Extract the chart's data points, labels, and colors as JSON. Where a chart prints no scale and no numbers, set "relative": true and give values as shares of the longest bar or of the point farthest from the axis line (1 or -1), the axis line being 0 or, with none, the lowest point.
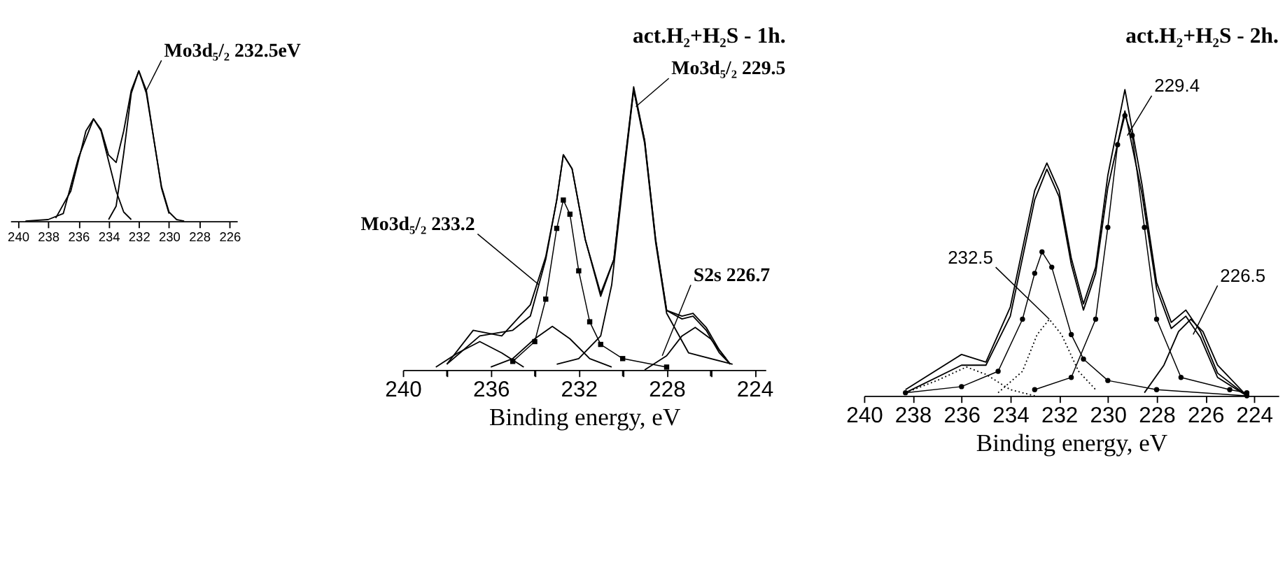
{
  "chart_data": [
    {
      "type": "line",
      "relative": true,
      "xlim": [
        240.5,
        225.5
      ],
      "xticks": [
        240,
        238,
        236,
        234,
        232,
        230,
        228,
        226
      ],
      "series": [
        {
          "color": "#000000",
          "x": [
            239.5,
            238,
            237,
            236,
            235,
            234.5,
            234,
            233.5,
            233,
            232.5,
            232,
            231.5,
            231,
            230.5,
            230,
            229.5,
            229
          ],
          "values": [
            0.0,
            0.01,
            0.05,
            0.42,
            0.68,
            0.61,
            0.44,
            0.39,
            0.6,
            0.87,
            1.0,
            0.87,
            0.54,
            0.23,
            0.06,
            0.01,
            0.0
          ]
        },
        {
          "color": "#000000",
          "x": [
            237.5,
            236.5,
            236,
            235.5,
            235,
            234.5,
            234,
            233.5,
            233,
            232.5
          ],
          "values": [
            0.02,
            0.2,
            0.4,
            0.6,
            0.68,
            0.6,
            0.4,
            0.2,
            0.06,
            0.01
          ]
        },
        {
          "color": "#000000",
          "x": [
            234,
            233.5,
            233,
            232.5,
            232,
            231.5,
            231,
            230.5,
            230
          ],
          "values": [
            0.01,
            0.1,
            0.45,
            0.85,
            1.0,
            0.85,
            0.54,
            0.22,
            0.05
          ]
        }
      ],
      "annotations": [
        {
          "text": "Mo3d₅/₂ 232.5eV",
          "x": 231.5,
          "y": 0.87
        }
      ]
    },
    {
      "type": "line",
      "relative": true,
      "title": "act.H₂+H₂S - 1h.",
      "xlabel": "Binding energy, eV",
      "xlim": [
        240,
        223.5
      ],
      "xticks": [
        240,
        {
          "value": 238,
          "label": null
        },
        236,
        {
          "value": 234,
          "label": null
        },
        232,
        {
          "value": 230,
          "label": null
        },
        228,
        {
          "value": 226,
          "label": null
        },
        224
      ],
      "series": [
        {
          "color": "#000000",
          "x": [
            238,
            236.5,
            235,
            234.2,
            233.5,
            233,
            232.7,
            232.3,
            231.7,
            231,
            230.4,
            230,
            229.5,
            229,
            228.5,
            228,
            227.3,
            226.8,
            226.2,
            225.6,
            225.1
          ],
          "values": [
            0.02,
            0.12,
            0.14,
            0.19,
            0.39,
            0.6,
            0.76,
            0.71,
            0.46,
            0.26,
            0.39,
            0.67,
            1.0,
            0.81,
            0.46,
            0.21,
            0.18,
            0.19,
            0.14,
            0.06,
            0.02
          ]
        },
        {
          "color": "#000000",
          "x": [
            238,
            236.8,
            235.5,
            234.2,
            233.5,
            233,
            232.7,
            232.3,
            231.7,
            231,
            230.4,
            230,
            229.5,
            229,
            228.5,
            228,
            227.3,
            226.8,
            226.2,
            225.6,
            225.1
          ],
          "values": [
            0.02,
            0.14,
            0.12,
            0.23,
            0.4,
            0.6,
            0.76,
            0.71,
            0.46,
            0.27,
            0.39,
            0.67,
            0.99,
            0.81,
            0.46,
            0.21,
            0.19,
            0.2,
            0.15,
            0.07,
            0.02
          ]
        },
        {
          "color": "#000000",
          "marker": "square",
          "x": [
            235,
            234,
            233.5,
            233,
            232.7,
            232.4,
            232,
            231.5,
            231,
            230,
            228
          ],
          "values": [
            0.03,
            0.1,
            0.25,
            0.5,
            0.6,
            0.55,
            0.35,
            0.17,
            0.09,
            0.04,
            0.01
          ]
        },
        {
          "color": "#000000",
          "x": [
            233,
            232,
            231,
            230.5,
            230,
            229.5,
            229,
            228.5,
            228,
            227,
            225
          ],
          "values": [
            0.02,
            0.04,
            0.12,
            0.3,
            0.65,
            0.99,
            0.8,
            0.45,
            0.2,
            0.06,
            0.02
          ]
        },
        {
          "color": "#000000",
          "x": [
            236,
            235,
            234,
            233.2,
            232.4,
            231.5,
            230.5
          ],
          "values": [
            0.01,
            0.04,
            0.11,
            0.154,
            0.11,
            0.04,
            0.01
          ]
        },
        {
          "color": "#000000",
          "x": [
            238.5,
            237.5,
            236.5,
            235.5,
            234.5
          ],
          "values": [
            0.01,
            0.06,
            0.1,
            0.06,
            0.01
          ]
        },
        {
          "color": "#000000",
          "x": [
            229,
            228,
            227.3,
            226.7,
            226,
            225.3
          ],
          "values": [
            0.0,
            0.05,
            0.12,
            0.15,
            0.11,
            0.04
          ]
        }
      ],
      "annotations": [
        {
          "text": "Mo3d₅/₂ 229.5",
          "x": 229.4,
          "y": 0.93
        },
        {
          "text": "Mo3d₅/₂ 233.2",
          "x": 233.8,
          "y": 0.3
        },
        {
          "text": "S2s 226.7",
          "x": 228.2,
          "y": 0.05
        }
      ]
    },
    {
      "type": "line",
      "relative": true,
      "title": "act.H₂+H₂S - 2h.",
      "xlabel": "Binding energy, eV",
      "xlim": [
        240,
        223
      ],
      "xticks": [
        240,
        238,
        236,
        234,
        232,
        230,
        228,
        226,
        224
      ],
      "series": [
        {
          "color": "#000000",
          "x": [
            238.3,
            236,
            235,
            234,
            233,
            232.5,
            232,
            231.5,
            231,
            230.5,
            230,
            229.3,
            228.6,
            228,
            227.4,
            226.8,
            226.2,
            225.5,
            224.3
          ],
          "values": [
            0.02,
            0.135,
            0.11,
            0.29,
            0.67,
            0.76,
            0.67,
            0.45,
            0.3,
            0.42,
            0.72,
            1.0,
            0.69,
            0.37,
            0.24,
            0.28,
            0.21,
            0.074,
            0.0
          ]
        },
        {
          "color": "#000000",
          "x": [
            238.3,
            236,
            235,
            234,
            233,
            232.5,
            232,
            231.5,
            231,
            230.5,
            230,
            229.3,
            228.6,
            228,
            227.4,
            226.8,
            226.2,
            225.5,
            224.3
          ],
          "values": [
            0.01,
            0.1,
            0.1,
            0.26,
            0.64,
            0.74,
            0.65,
            0.43,
            0.28,
            0.4,
            0.68,
            0.93,
            0.66,
            0.35,
            0.22,
            0.26,
            0.19,
            0.06,
            0.0
          ]
        },
        {
          "color": "#000000",
          "marker": "circle",
          "x": [
            238.3,
            236,
            234.5,
            233.5,
            233,
            232.7,
            232.3,
            231.5,
            231,
            230,
            228,
            224.3
          ],
          "values": [
            0.01,
            0.03,
            0.08,
            0.25,
            0.4,
            0.47,
            0.42,
            0.2,
            0.12,
            0.05,
            0.02,
            0.0
          ]
        },
        {
          "color": "#000000",
          "marker": "circle",
          "x": [
            233,
            231.5,
            230.5,
            230,
            229.6,
            229.3,
            229,
            228.5,
            228,
            227,
            225,
            224.3
          ],
          "values": [
            0.02,
            0.06,
            0.25,
            0.55,
            0.82,
            0.915,
            0.85,
            0.55,
            0.25,
            0.06,
            0.02,
            0.01
          ]
        },
        {
          "color": "#000000",
          "line_style": "dotted",
          "x": [
            234.5,
            233.5,
            232.9,
            232.4,
            231.9,
            231.2,
            230.5
          ],
          "values": [
            0.01,
            0.08,
            0.2,
            0.25,
            0.2,
            0.08,
            0.02
          ]
        },
        {
          "color": "#000000",
          "line_style": "dotted",
          "x": [
            238.3,
            237,
            235.8,
            235,
            234,
            233
          ],
          "values": [
            0.01,
            0.05,
            0.094,
            0.07,
            0.02,
            0.0
          ]
        },
        {
          "color": "#000000",
          "x": [
            228.5,
            227.7,
            227.1,
            226.6,
            226.1,
            225.5,
            224.3
          ],
          "values": [
            0.01,
            0.1,
            0.21,
            0.25,
            0.21,
            0.1,
            0.0
          ]
        }
      ],
      "annotations": [
        {
          "text": "229.4",
          "x": 229.2,
          "y": 0.85
        },
        {
          "text": "232.5",
          "x": 232.4,
          "y": 0.25
        },
        {
          "text": "226.5",
          "x": 226.5,
          "y": 0.2
        }
      ]
    }
  ]
}
